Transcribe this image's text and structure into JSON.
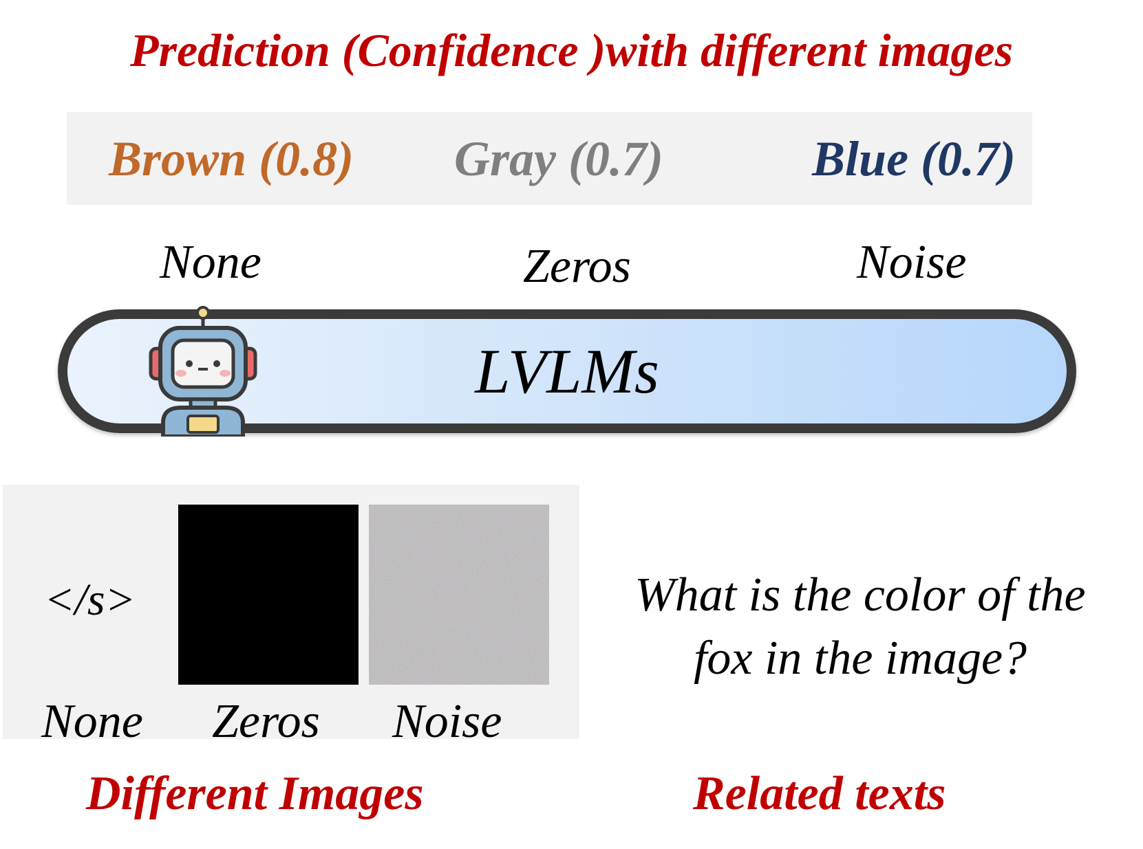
{
  "title": "Prediction (Confidence )with different images",
  "predictions": [
    {
      "label": "Brown (0.8)",
      "color": "#c0692a"
    },
    {
      "label": "Gray (0.7)",
      "color": "#7f7f7f"
    },
    {
      "label": "Blue (0.7)",
      "color": "#1f3864"
    }
  ],
  "inputs": [
    "None",
    "Zeros",
    "Noise"
  ],
  "model": {
    "label": "LVLMs",
    "icon": "robot-icon"
  },
  "images": {
    "eos_token": "</s>",
    "labels": [
      "None",
      "Zeros",
      "Noise"
    ]
  },
  "question": {
    "line1": "What is the color of the",
    "line2": "fox in the image?"
  },
  "sections": {
    "images_label": "Different Images",
    "texts_label": "Related texts"
  },
  "colors": {
    "accent_red": "#c00000",
    "panel_gray": "#f2f2f2"
  }
}
